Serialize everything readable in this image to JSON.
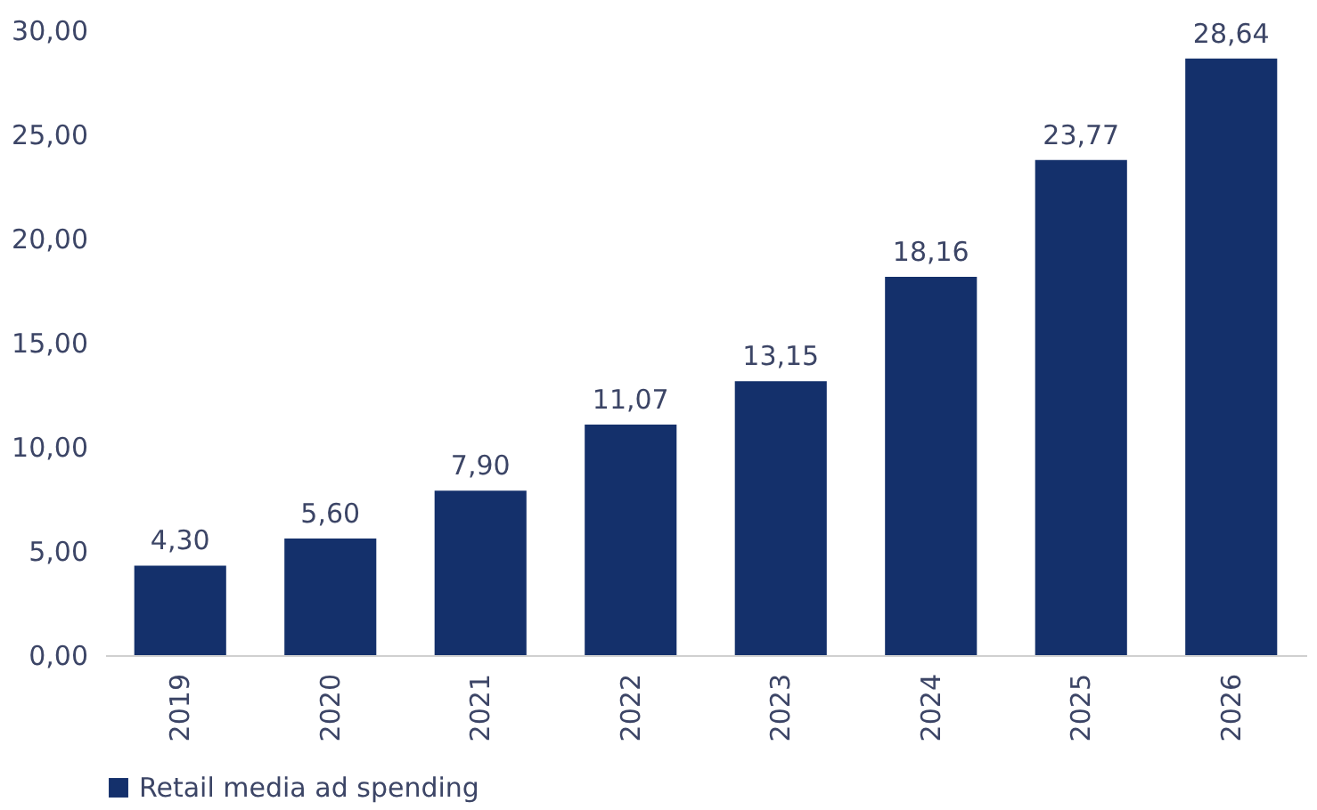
{
  "chart_data": {
    "type": "bar",
    "categories": [
      "2019",
      "2020",
      "2021",
      "2022",
      "2023",
      "2024",
      "2025",
      "2026"
    ],
    "series": [
      {
        "name": "Retail media ad spending",
        "color": "#14306b",
        "values": [
          4.3,
          5.6,
          7.9,
          11.07,
          13.15,
          18.16,
          23.77,
          28.64
        ],
        "value_labels": [
          "4,30",
          "5,60",
          "7,90",
          "11,07",
          "13,15",
          "18,16",
          "23,77",
          "28,64"
        ]
      }
    ],
    "ylim": [
      0,
      30
    ],
    "yticks": [
      {
        "value": 0,
        "label": "0,00"
      },
      {
        "value": 5,
        "label": "5,00"
      },
      {
        "value": 10,
        "label": "10,00"
      },
      {
        "value": 15,
        "label": "15,00"
      },
      {
        "value": 20,
        "label": "20,00"
      },
      {
        "value": 25,
        "label": "25,00"
      },
      {
        "value": 30,
        "label": "30,00"
      }
    ],
    "grid": false,
    "legend": "bottom"
  }
}
